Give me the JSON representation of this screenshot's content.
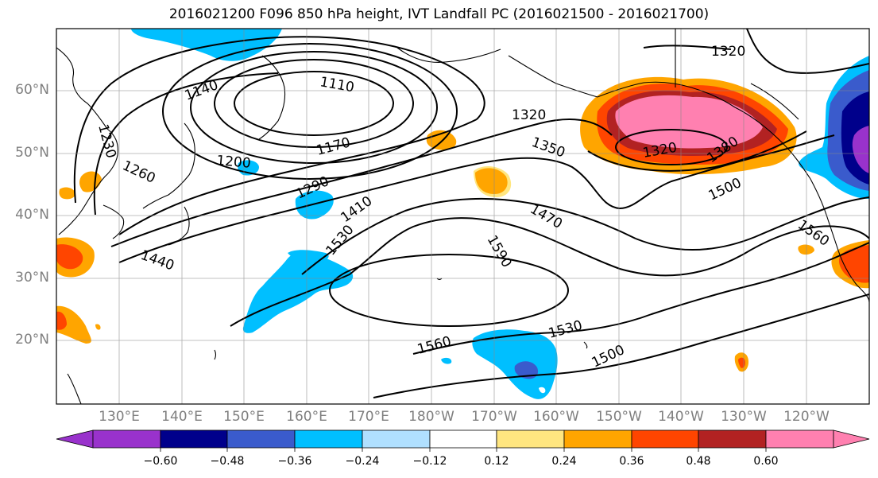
{
  "title": "2016021200 F096 850 hPa height, IVT Landfall PC (2016021500 - 2016021700)",
  "lat_labels": [
    "60°N",
    "50°N",
    "40°N",
    "30°N",
    "20°N"
  ],
  "lon_labels": [
    "130°E",
    "140°E",
    "150°E",
    "160°E",
    "170°E",
    "180°W",
    "170°W",
    "160°W",
    "150°W",
    "140°W",
    "130°W",
    "120°W"
  ],
  "contour_labels": [
    "1110",
    "1140",
    "1170",
    "1200",
    "1230",
    "1260",
    "1290",
    "1320",
    "1320",
    "1320",
    "1350",
    "1380",
    "1410",
    "1440",
    "1470",
    "1500",
    "1500",
    "1530",
    "1530",
    "1560",
    "1560",
    "1590"
  ],
  "colorbar": {
    "ticks": [
      "−0.60",
      "−0.48",
      "−0.36",
      "−0.24",
      "−0.12",
      "0.12",
      "0.24",
      "0.36",
      "0.48",
      "0.60"
    ],
    "colors": [
      "#9932cc",
      "#00008b",
      "#3a5bcc",
      "#00bfff",
      "#b0e0ff",
      "#ffffff",
      "#ffe680",
      "#ffa500",
      "#ff4500",
      "#b22222",
      "#ff80b0"
    ]
  },
  "fill_colors": {
    "neg_light": "#00bfff",
    "neg_mid": "#3a5bcc",
    "neg_dark": "#00008b",
    "neg_purple": "#9932cc",
    "pos_yellow": "#ffe680",
    "pos_orange": "#ffa500",
    "pos_red": "#ff4500",
    "pos_darkred": "#b22222",
    "pos_pink": "#ff80b0"
  }
}
